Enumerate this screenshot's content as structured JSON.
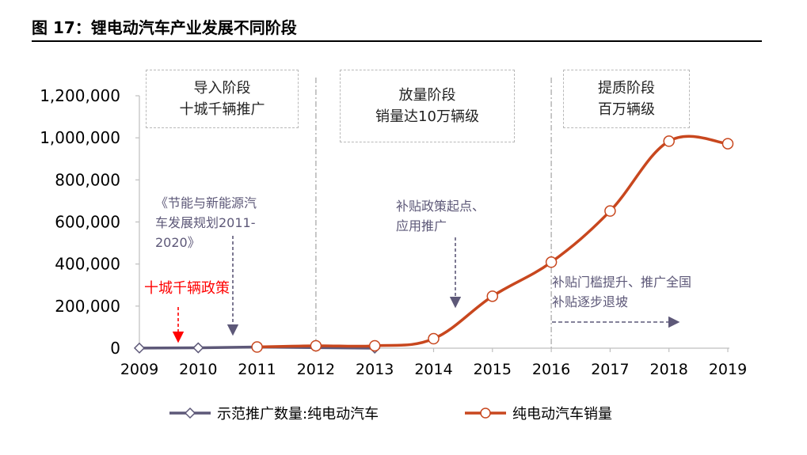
{
  "figure_title": "图 17：锂电动汽车产业发展不同阶段",
  "phases": [
    {
      "line1": "导入阶段",
      "line2": "十城千辆推广"
    },
    {
      "line1": "放量阶段",
      "line2": "销量达10万辆级"
    },
    {
      "line1": "提质阶段",
      "line2": "百万辆级"
    }
  ],
  "annotations": {
    "plan": [
      "《节能与新能源汽",
      "车发展规划2011-",
      "2020》"
    ],
    "policy_red": "十城千辆政策",
    "subsidy_start": [
      "补贴政策起点、",
      "应用推广"
    ],
    "subsidy_raise": [
      "补贴门槛提升、推广全国",
      "补贴逐步退坡"
    ]
  },
  "colors": {
    "series_demo": "#5d5878",
    "series_sales": "#c8471e",
    "policy_red": "#ff0000",
    "axis": "#bfbfbf"
  },
  "chart_data": {
    "type": "line",
    "title": "图 17：锂电动汽车产业发展不同阶段",
    "xlabel": "",
    "ylabel": "",
    "categories": [
      "2009",
      "2010",
      "2011",
      "2012",
      "2013",
      "2014",
      "2015",
      "2016",
      "2017",
      "2018",
      "2019"
    ],
    "ylim": [
      0,
      1200000
    ],
    "yticks": [
      0,
      200000,
      400000,
      600000,
      800000,
      1000000,
      1200000
    ],
    "ytick_labels": [
      "0",
      "200,000",
      "400,000",
      "600,000",
      "800,000",
      "1,000,000",
      "1,200,000"
    ],
    "grid": false,
    "legend_position": "bottom",
    "series": [
      {
        "name": "示范推广数量:纯电动汽车",
        "marker": "diamond",
        "values": [
          480,
          1700,
          5600,
          null,
          0,
          null,
          null,
          null,
          null,
          null,
          null
        ]
      },
      {
        "name": "纯电动汽车销量",
        "marker": "circle",
        "values": [
          null,
          null,
          5600,
          11400,
          11400,
          45000,
          247000,
          409000,
          652000,
          984000,
          972000
        ]
      }
    ]
  }
}
